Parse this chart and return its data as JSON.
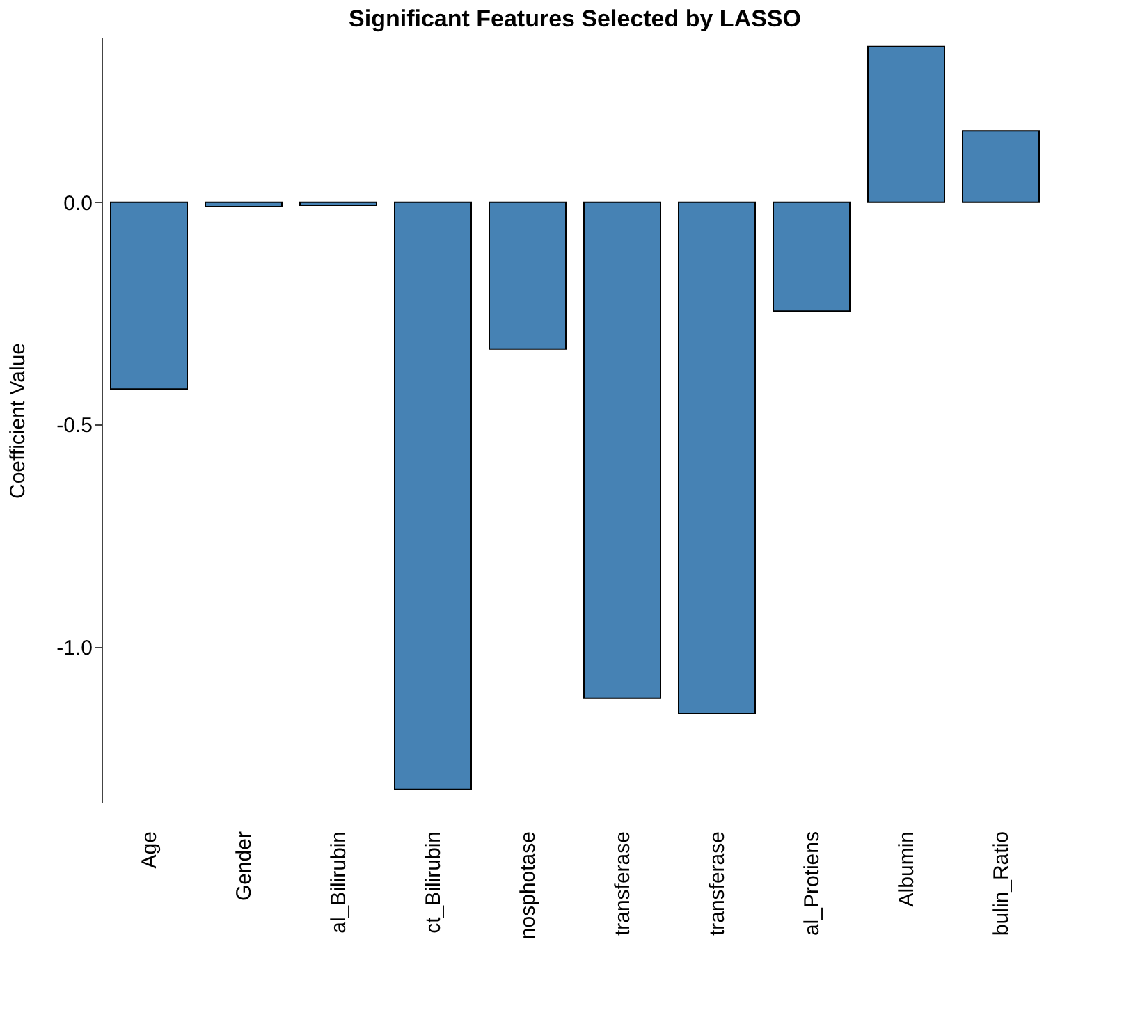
{
  "chart_data": {
    "type": "bar",
    "title": "Significant Features Selected by LASSO",
    "ylabel": "Coefficient Value",
    "categories": [
      "Age",
      "Gender",
      "al_Bilirubin",
      "ct_Bilirubin",
      "nosphotase",
      "transferase",
      "transferase",
      "al_Protiens",
      "Albumin",
      "bulin_Ratio"
    ],
    "values": [
      -0.42,
      -0.01,
      -0.007,
      -1.32,
      -0.33,
      -1.115,
      -1.15,
      -0.245,
      0.35,
      0.16
    ],
    "color": "#4682b4",
    "ylim": [
      -1.35,
      0.37
    ],
    "yticks": [
      {
        "value": -1.0,
        "label": "-1.0"
      },
      {
        "value": -0.5,
        "label": "-0.5"
      },
      {
        "value": 0,
        "label": "0.0"
      }
    ],
    "grid": false
  }
}
